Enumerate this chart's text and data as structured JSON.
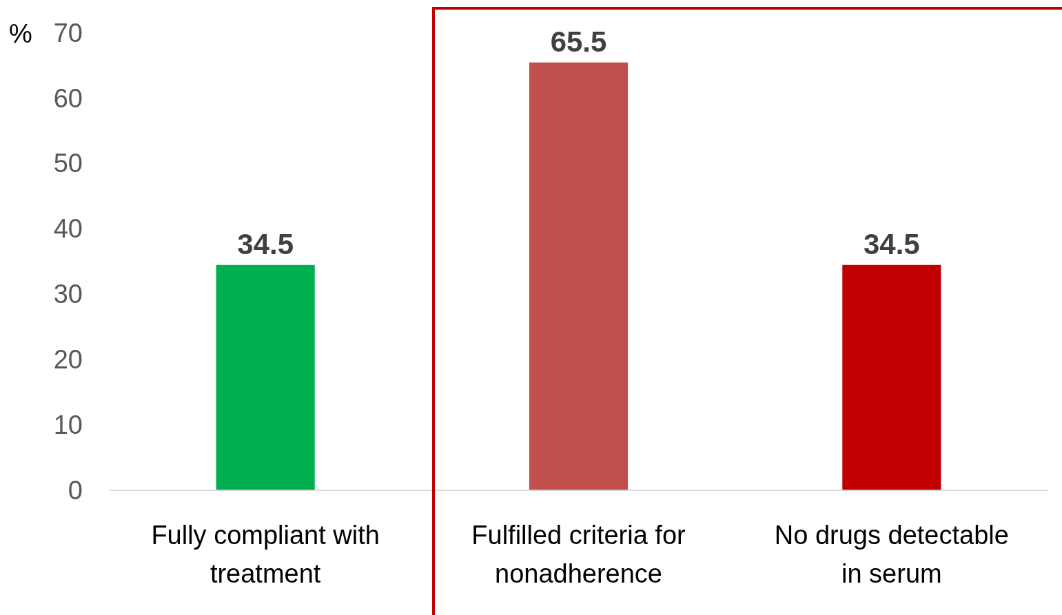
{
  "chart_data": {
    "type": "bar",
    "ylabel": "%",
    "categories": [
      "Fully compliant with treatment",
      "Fulfilled criteria for nonadherence",
      "No drugs detectable in serum"
    ],
    "values": [
      34.5,
      65.5,
      34.5
    ],
    "colors": [
      "#00b050",
      "#c0504d",
      "#c00000"
    ],
    "ylim": [
      0,
      70
    ],
    "yticks": [
      0,
      10,
      20,
      30,
      40,
      50,
      60,
      70
    ],
    "grid": false,
    "data_labels": true
  }
}
